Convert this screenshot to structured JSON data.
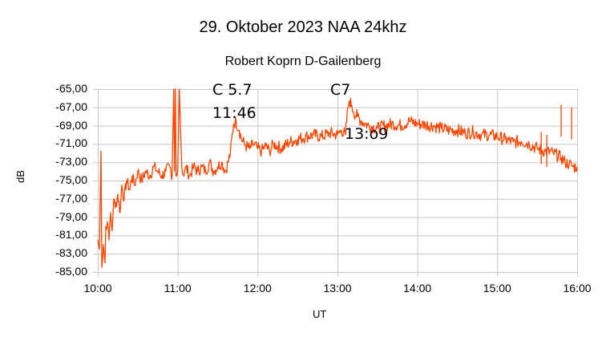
{
  "chart_data": {
    "type": "line",
    "title": "29. Oktober 2023   NAA 24khz",
    "subtitle": "Robert Koprn  D-Gailenberg",
    "xlabel": "UT",
    "ylabel": "dB",
    "ylim": [
      -85,
      -65
    ],
    "xlim": [
      "10:00",
      "16:00"
    ],
    "grid": true,
    "legend": null,
    "line_color": "#ff4500",
    "y_ticks": [
      "-65,00",
      "-67,00",
      "-69,00",
      "-71,00",
      "-73,00",
      "-75,00",
      "-77,00",
      "-79,00",
      "-81,00",
      "-83,00",
      "-85,00"
    ],
    "x_ticks": [
      "10:00",
      "11:00",
      "12:00",
      "13:00",
      "14:00",
      "15:00",
      "16:00"
    ],
    "annotations": [
      {
        "text": "C 5.7",
        "time": "11:46"
      },
      {
        "text": "11:46",
        "time": "11:46"
      },
      {
        "text": "C7",
        "time": "13:09"
      },
      {
        "text": "13:o9",
        "time": "13:09"
      }
    ],
    "series": [
      {
        "name": "NAA 24kHz",
        "x_hours": [
          10.0,
          10.02,
          10.04,
          10.05,
          10.07,
          10.09,
          10.1,
          10.12,
          10.14,
          10.16,
          10.18,
          10.2,
          10.22,
          10.25,
          10.28,
          10.3,
          10.33,
          10.36,
          10.4,
          10.43,
          10.46,
          10.5,
          10.55,
          10.6,
          10.65,
          10.7,
          10.75,
          10.8,
          10.85,
          10.9,
          10.93,
          10.95,
          10.96,
          10.97,
          10.98,
          11.0,
          11.02,
          11.05,
          11.08,
          11.1,
          11.15,
          11.2,
          11.25,
          11.3,
          11.35,
          11.4,
          11.45,
          11.5,
          11.55,
          11.6,
          11.63,
          11.66,
          11.7,
          11.73,
          11.77,
          11.8,
          11.85,
          11.9,
          11.95,
          12.0,
          12.05,
          12.1,
          12.15,
          12.2,
          12.3,
          12.4,
          12.5,
          12.6,
          12.7,
          12.8,
          12.9,
          13.0,
          13.05,
          13.1,
          13.13,
          13.15,
          13.18,
          13.2,
          13.25,
          13.3,
          13.35,
          13.4,
          13.5,
          13.6,
          13.7,
          13.8,
          13.9,
          14.0,
          14.1,
          14.2,
          14.3,
          14.4,
          14.5,
          14.6,
          14.7,
          14.8,
          14.9,
          15.0,
          15.1,
          15.2,
          15.3,
          15.4,
          15.5,
          15.6,
          15.7,
          15.8,
          15.85,
          15.9,
          15.95,
          16.0
        ],
        "values": [
          -81.5,
          -82.5,
          -71.8,
          -84.5,
          -82.0,
          -84.0,
          -80.0,
          -79.5,
          -81.5,
          -78.5,
          -80.5,
          -77.0,
          -78.0,
          -76.5,
          -78.5,
          -75.5,
          -77.0,
          -75.0,
          -76.0,
          -74.5,
          -75.5,
          -74.0,
          -75.0,
          -74.0,
          -74.5,
          -73.5,
          -74.0,
          -74.5,
          -74.0,
          -73.5,
          -74.5,
          -65.0,
          -74.0,
          -65.0,
          -74.5,
          -74.0,
          -65.0,
          -73.5,
          -74.5,
          -73.5,
          -74.5,
          -73.5,
          -74.0,
          -73.5,
          -74.0,
          -73.0,
          -74.0,
          -73.5,
          -73.0,
          -74.0,
          -73.0,
          -72.0,
          -68.8,
          -68.5,
          -69.5,
          -70.5,
          -71.2,
          -71.5,
          -71.0,
          -71.5,
          -71.8,
          -71.2,
          -71.8,
          -71.0,
          -71.5,
          -70.8,
          -70.5,
          -70.2,
          -70.0,
          -70.2,
          -69.8,
          -70.0,
          -69.5,
          -70.0,
          -67.0,
          -66.3,
          -66.8,
          -67.5,
          -68.0,
          -68.5,
          -68.8,
          -69.0,
          -69.3,
          -69.0,
          -68.8,
          -69.0,
          -68.5,
          -68.8,
          -68.9,
          -69.0,
          -69.3,
          -69.5,
          -69.5,
          -69.8,
          -69.7,
          -70.0,
          -70.0,
          -70.2,
          -70.5,
          -70.8,
          -70.7,
          -71.0,
          -71.5,
          -71.8,
          -72.0,
          -72.5,
          -73.0,
          -73.2,
          -73.5,
          -73.5
        ]
      }
    ]
  }
}
